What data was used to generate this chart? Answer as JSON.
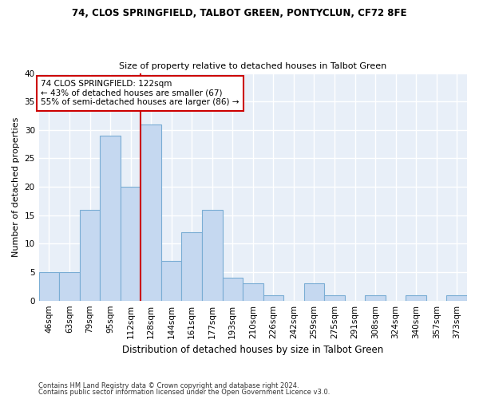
{
  "title1": "74, CLOS SPRINGFIELD, TALBOT GREEN, PONTYCLUN, CF72 8FE",
  "title2": "Size of property relative to detached houses in Talbot Green",
  "xlabel": "Distribution of detached houses by size in Talbot Green",
  "ylabel": "Number of detached properties",
  "footer1": "Contains HM Land Registry data © Crown copyright and database right 2024.",
  "footer2": "Contains public sector information licensed under the Open Government Licence v3.0.",
  "bin_labels": [
    "46sqm",
    "63sqm",
    "79sqm",
    "95sqm",
    "112sqm",
    "128sqm",
    "144sqm",
    "161sqm",
    "177sqm",
    "193sqm",
    "210sqm",
    "226sqm",
    "242sqm",
    "259sqm",
    "275sqm",
    "291sqm",
    "308sqm",
    "324sqm",
    "340sqm",
    "357sqm",
    "373sqm"
  ],
  "bar_values": [
    5,
    5,
    16,
    29,
    20,
    31,
    7,
    12,
    16,
    4,
    3,
    1,
    0,
    3,
    1,
    0,
    1,
    0,
    1,
    0,
    1
  ],
  "bar_color": "#c5d8f0",
  "bar_edgecolor": "#7aadd4",
  "vline_color": "#cc0000",
  "annotation_text": "74 CLOS SPRINGFIELD: 122sqm\n← 43% of detached houses are smaller (67)\n55% of semi-detached houses are larger (86) →",
  "annotation_box_color": "#cc0000",
  "ylim": [
    0,
    40
  ],
  "yticks": [
    0,
    5,
    10,
    15,
    20,
    25,
    30,
    35,
    40
  ],
  "bg_color": "#e8eff8",
  "grid_color": "#ffffff",
  "title_fontsize": 8.5,
  "subtitle_fontsize": 8.0,
  "tick_fontsize": 7.5,
  "ylabel_fontsize": 8.0,
  "xlabel_fontsize": 8.5
}
